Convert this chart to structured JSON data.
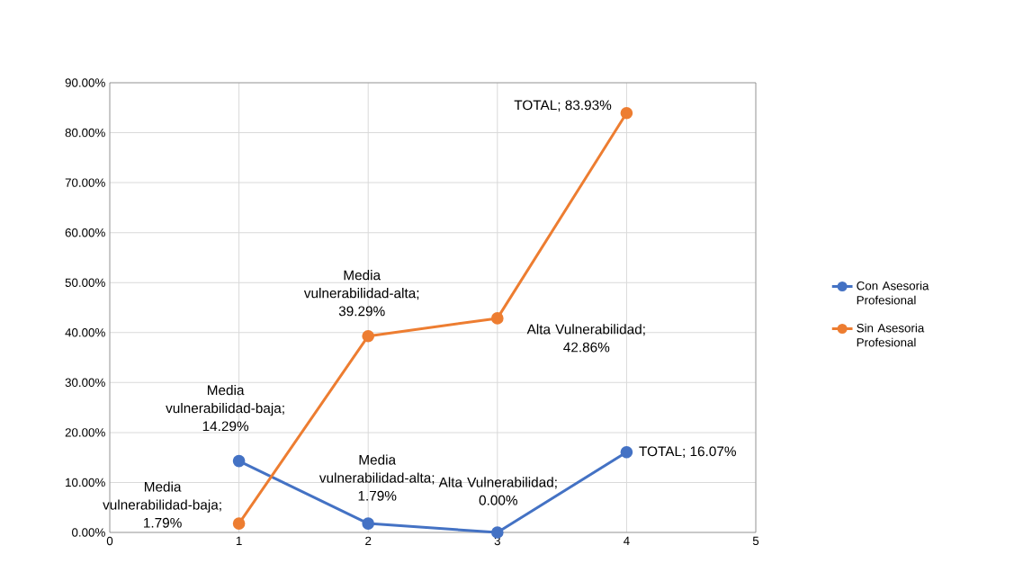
{
  "chart_data": {
    "type": "line",
    "x": [
      1,
      2,
      3,
      4
    ],
    "series": [
      {
        "name": "Con Asesoria Profesional",
        "color": "#4472c4",
        "values": [
          14.29,
          1.79,
          0.0,
          16.07
        ],
        "value_labels": [
          "Media vulnerabilidad-baja; 14.29%",
          "Media vulnerabilidad-alta; 1.79%",
          "Alta Vulnerabilidad; 0.00%",
          "TOTAL; 16.07%"
        ]
      },
      {
        "name": "Sin Asesoria Profesional",
        "color": "#ed7d31",
        "values": [
          1.79,
          39.29,
          42.86,
          83.93
        ],
        "value_labels": [
          "Media vulnerabilidad-baja; 1.79%",
          "Media vulnerabilidad-alta; 39.29%",
          "Alta Vulnerabilidad; 42.86%",
          "TOTAL; 83.93%"
        ]
      }
    ],
    "xlim": [
      0,
      5
    ],
    "xticks": [
      0,
      1,
      2,
      3,
      4,
      5
    ],
    "ylim": [
      0,
      90
    ],
    "yticks": [
      {
        "value": 0,
        "label": "0.00%"
      },
      {
        "value": 10,
        "label": "10.00%"
      },
      {
        "value": 20,
        "label": "20.00%"
      },
      {
        "value": 30,
        "label": "30.00%"
      },
      {
        "value": 40,
        "label": "40.00%"
      },
      {
        "value": 50,
        "label": "50.00%"
      },
      {
        "value": 60,
        "label": "60.00%"
      },
      {
        "value": 70,
        "label": "70.00%"
      },
      {
        "value": 80,
        "label": "80.00%"
      },
      {
        "value": 90,
        "label": "90.00%"
      }
    ],
    "grid": true,
    "legend": "right",
    "marker": "circle",
    "line_style": "solid"
  }
}
